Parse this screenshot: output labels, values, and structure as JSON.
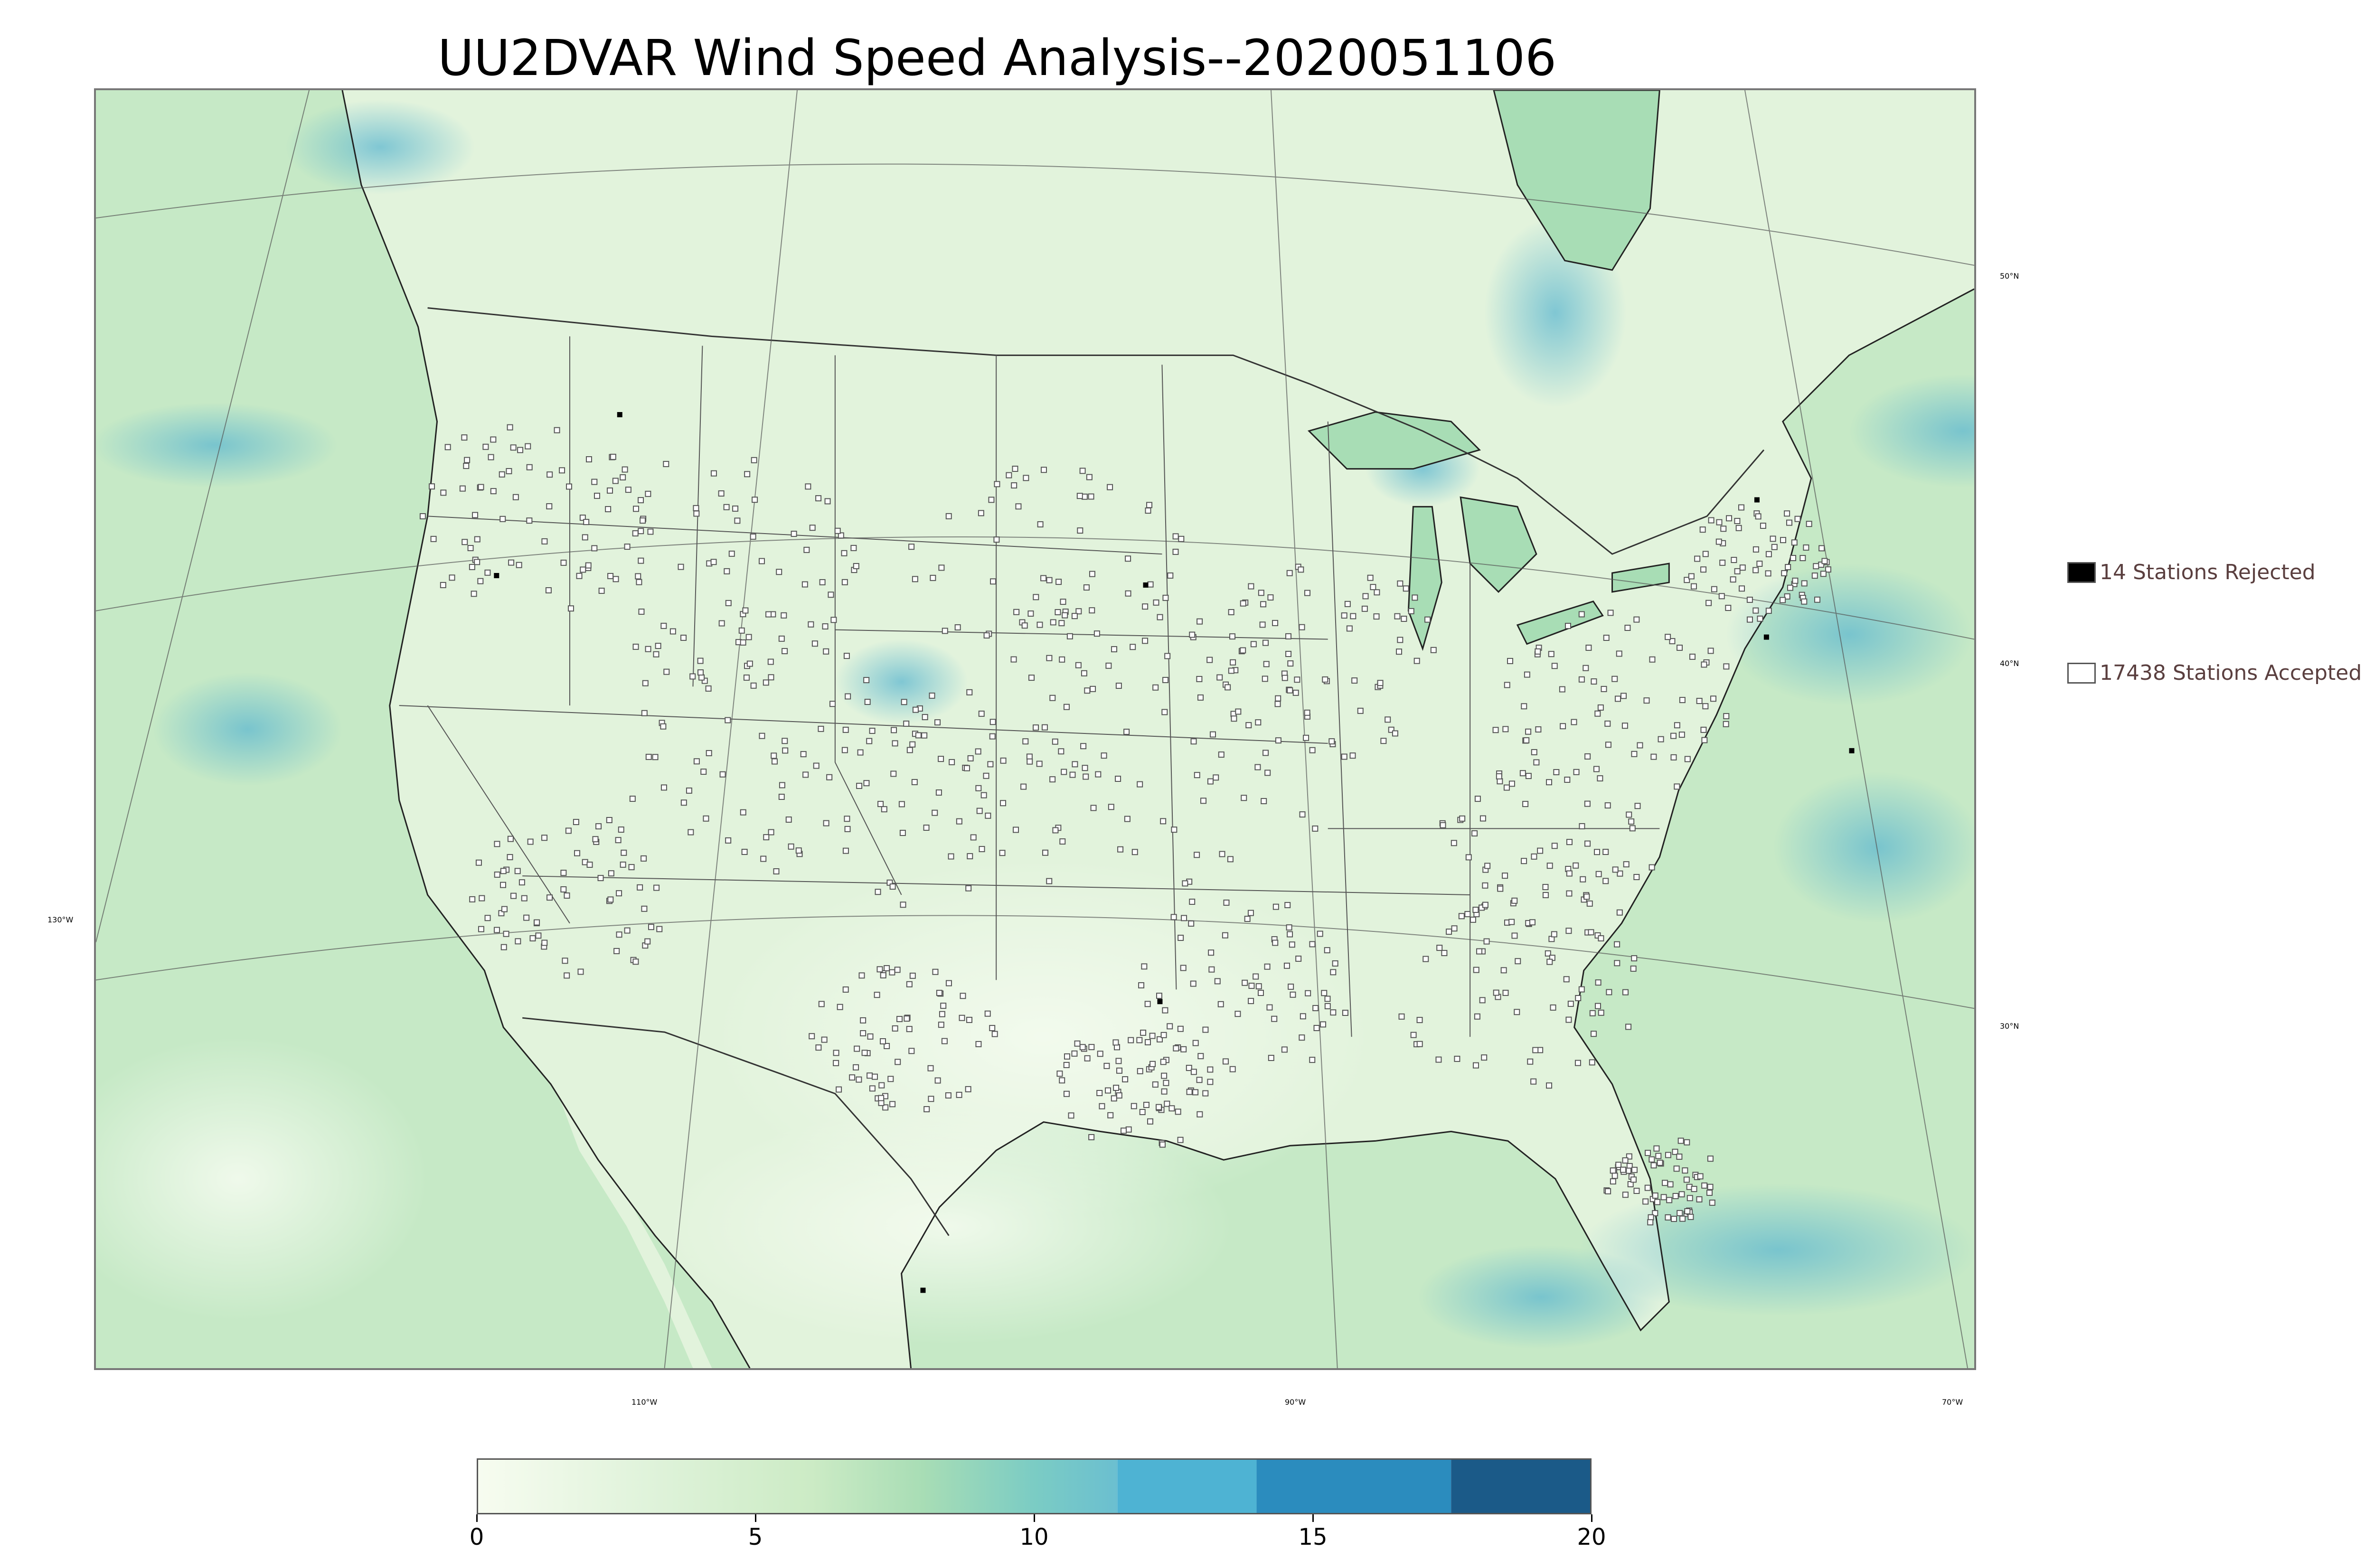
{
  "title": "UU2DVAR Wind Speed Analysis--2020051106",
  "map": {
    "lon_labels": [
      "130°W",
      "110°W",
      "90°W",
      "70°W"
    ],
    "lat_labels": [
      "50°N",
      "40°N",
      "30°N"
    ],
    "colors": {
      "land_base": "#d4efd0",
      "ocean_base": "#bfe6c6",
      "high_wind": "#3aa0c8",
      "coast": "#222222",
      "border": "#333333",
      "station_accepted": "#555555",
      "station_rejected": "#000000"
    }
  },
  "legend": {
    "rejected": {
      "label": "14 Stations Rejected",
      "color": "#000000"
    },
    "accepted": {
      "label": "17438 Stations Accepted",
      "color": "#ffffff"
    }
  },
  "colorbar": {
    "min": 0,
    "max": 20,
    "ticks": [
      "0",
      "5",
      "10",
      "15",
      "20"
    ],
    "stops": [
      {
        "value": 0,
        "color": "#f7fcf0"
      },
      {
        "value": 3,
        "color": "#e0f3db"
      },
      {
        "value": 6,
        "color": "#ccebc5"
      },
      {
        "value": 8,
        "color": "#a8ddb5"
      },
      {
        "value": 10,
        "color": "#7bccc4"
      },
      {
        "value": 11.5,
        "color": "#6bbfd0"
      },
      {
        "value": 14,
        "color": "#4eb3d3"
      },
      {
        "value": 17.5,
        "color": "#2b8cbe"
      },
      {
        "value": 20,
        "color": "#1b5a88"
      }
    ]
  }
}
